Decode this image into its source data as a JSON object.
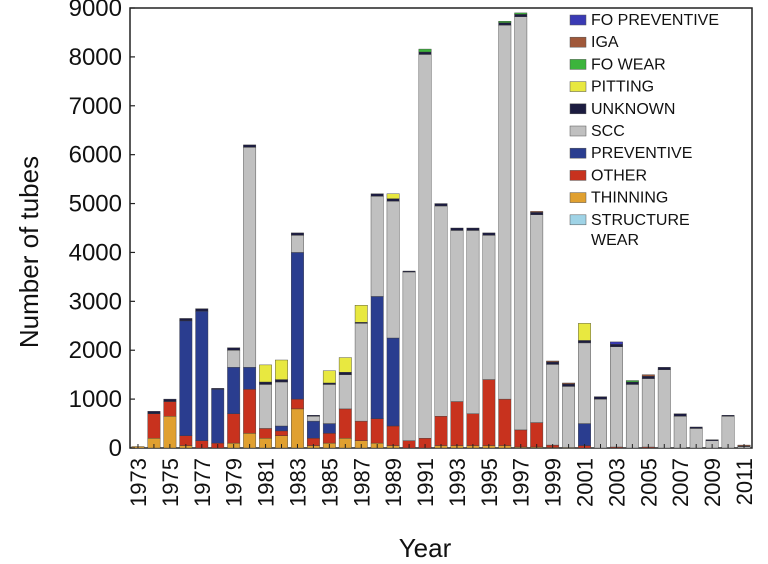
{
  "chart_data": {
    "type": "bar",
    "stacked": true,
    "title": "",
    "xlabel": "Year",
    "ylabel": "Number of tubes",
    "ylim": [
      0,
      9000
    ],
    "yticks": [
      0,
      1000,
      2000,
      3000,
      4000,
      5000,
      6000,
      7000,
      8000,
      9000
    ],
    "xtick_labels": [
      "1973",
      "1975",
      "1977",
      "1979",
      "1981",
      "1983",
      "1985",
      "1987",
      "1989",
      "1991",
      "1993",
      "1995",
      "1997",
      "1999",
      "2001",
      "2003",
      "2005",
      "2007",
      "2009",
      "2011"
    ],
    "grid": false,
    "legend_position": "top-right",
    "categories": [
      "1973",
      "1974",
      "1975",
      "1976",
      "1977",
      "1978",
      "1979",
      "1980",
      "1981",
      "1982",
      "1983",
      "1984",
      "1985",
      "1986",
      "1987",
      "1988",
      "1989",
      "1990",
      "1991",
      "1992",
      "1993",
      "1994",
      "1995",
      "1996",
      "1997",
      "1998",
      "1999",
      "2000",
      "2001",
      "2002",
      "2003",
      "2004",
      "2005",
      "2006",
      "2007",
      "2008",
      "2009",
      "2010",
      "2011"
    ],
    "series": [
      {
        "name": "STRUCTURE WEAR",
        "color": "#9fd3e6",
        "values": [
          0,
          0,
          0,
          0,
          0,
          0,
          0,
          0,
          0,
          0,
          0,
          0,
          0,
          0,
          0,
          0,
          0,
          0,
          0,
          0,
          0,
          0,
          0,
          0,
          0,
          0,
          0,
          0,
          0,
          0,
          0,
          0,
          0,
          0,
          0,
          0,
          0,
          0,
          0
        ]
      },
      {
        "name": "THINNING",
        "color": "#e0a030",
        "values": [
          30,
          200,
          650,
          50,
          0,
          0,
          100,
          300,
          200,
          250,
          800,
          50,
          100,
          200,
          150,
          100,
          50,
          0,
          0,
          50,
          50,
          50,
          50,
          50,
          20,
          20,
          10,
          10,
          0,
          0,
          0,
          0,
          0,
          0,
          0,
          0,
          0,
          0,
          0
        ]
      },
      {
        "name": "OTHER",
        "color": "#c8321e",
        "values": [
          0,
          500,
          300,
          200,
          150,
          100,
          600,
          900,
          200,
          100,
          200,
          150,
          200,
          600,
          400,
          500,
          400,
          150,
          200,
          600,
          900,
          650,
          1350,
          950,
          350,
          500,
          50,
          0,
          50,
          0,
          20,
          0,
          20,
          0,
          0,
          0,
          0,
          0,
          0
        ]
      },
      {
        "name": "PREVENTIVE",
        "color": "#2a3d8f",
        "values": [
          0,
          0,
          0,
          2350,
          2650,
          1100,
          950,
          450,
          0,
          100,
          3000,
          350,
          200,
          0,
          0,
          2500,
          1800,
          0,
          0,
          0,
          0,
          0,
          0,
          0,
          0,
          0,
          0,
          0,
          450,
          0,
          0,
          0,
          0,
          0,
          0,
          0,
          0,
          0,
          0
        ]
      },
      {
        "name": "SCC",
        "color": "#c0c0c0",
        "values": [
          0,
          0,
          0,
          0,
          0,
          0,
          350,
          4500,
          900,
          900,
          350,
          100,
          800,
          700,
          2000,
          2050,
          2800,
          3450,
          7850,
          4300,
          3500,
          3750,
          2950,
          7650,
          8450,
          4250,
          1650,
          1250,
          1650,
          1000,
          2050,
          1300,
          1400,
          1600,
          650,
          400,
          150,
          650,
          30
        ]
      },
      {
        "name": "UNKNOWN",
        "color": "#1c1c40",
        "values": [
          0,
          50,
          50,
          50,
          50,
          20,
          50,
          50,
          50,
          50,
          50,
          20,
          30,
          50,
          20,
          50,
          50,
          20,
          50,
          50,
          50,
          50,
          50,
          50,
          50,
          50,
          50,
          50,
          50,
          50,
          50,
          50,
          50,
          50,
          50,
          30,
          20,
          20,
          10
        ]
      },
      {
        "name": "PITTING",
        "color": "#e8e840",
        "values": [
          0,
          0,
          0,
          0,
          0,
          0,
          0,
          0,
          350,
          400,
          0,
          0,
          250,
          300,
          350,
          0,
          100,
          0,
          0,
          0,
          0,
          0,
          0,
          0,
          0,
          0,
          0,
          0,
          350,
          0,
          0,
          0,
          0,
          0,
          0,
          0,
          0,
          0,
          0
        ]
      },
      {
        "name": "FO WEAR",
        "color": "#3cb43c",
        "values": [
          0,
          0,
          0,
          0,
          0,
          0,
          0,
          0,
          0,
          0,
          0,
          0,
          0,
          0,
          0,
          0,
          0,
          0,
          60,
          0,
          0,
          0,
          0,
          30,
          30,
          0,
          0,
          0,
          0,
          0,
          0,
          30,
          0,
          0,
          0,
          0,
          0,
          0,
          0
        ]
      },
      {
        "name": "IGA",
        "color": "#a0583a",
        "values": [
          0,
          0,
          0,
          0,
          0,
          0,
          0,
          0,
          0,
          0,
          0,
          0,
          0,
          0,
          0,
          0,
          0,
          0,
          0,
          0,
          0,
          0,
          0,
          0,
          0,
          20,
          20,
          20,
          0,
          0,
          0,
          0,
          30,
          0,
          0,
          0,
          0,
          0,
          20
        ]
      },
      {
        "name": "FO PREVENTIVE",
        "color": "#3a3ab4",
        "values": [
          0,
          0,
          0,
          0,
          0,
          0,
          0,
          0,
          0,
          0,
          0,
          0,
          0,
          0,
          0,
          0,
          0,
          0,
          0,
          0,
          0,
          0,
          0,
          0,
          0,
          0,
          0,
          0,
          0,
          0,
          50,
          0,
          0,
          0,
          0,
          0,
          0,
          0,
          0
        ]
      }
    ],
    "legend_order": [
      "FO PREVENTIVE",
      "IGA",
      "FO WEAR",
      "PITTING",
      "UNKNOWN",
      "SCC",
      "PREVENTIVE",
      "OTHER",
      "THINNING",
      "STRUCTURE WEAR"
    ]
  }
}
